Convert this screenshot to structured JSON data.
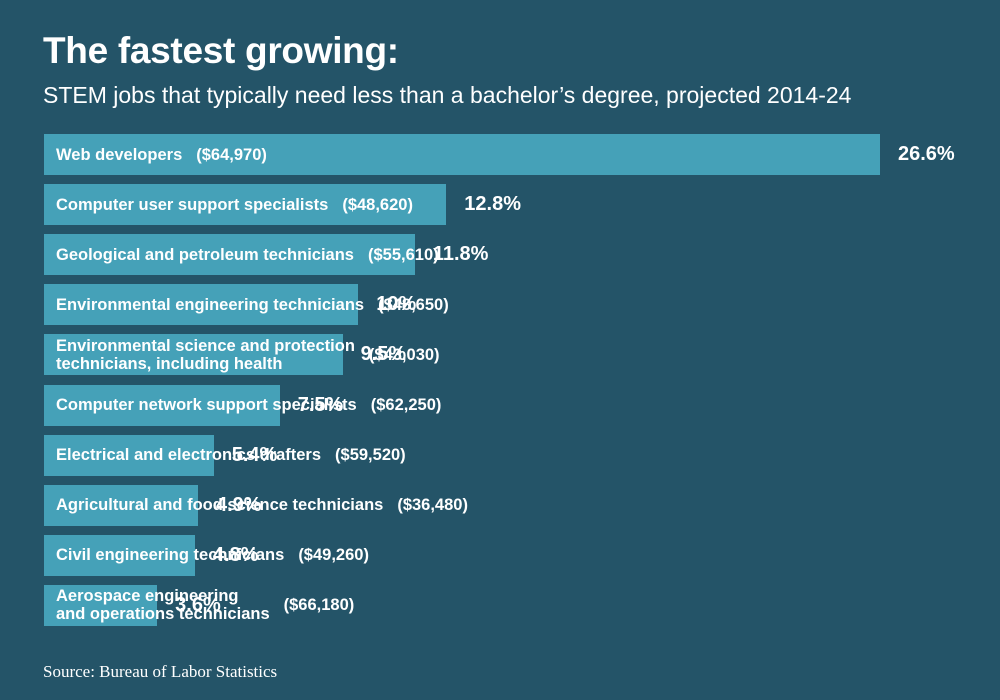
{
  "chart_data": {
    "type": "bar",
    "orientation": "horizontal",
    "title": "The fastest growing:",
    "subtitle": "STEM jobs that typically need less than a bachelor’s degree, projected 2014-24",
    "xlabel": "",
    "ylabel": "",
    "xlim": [
      0,
      26.6
    ],
    "grid": false,
    "categories": [
      "Web developers",
      "Computer user support specialists",
      "Geological and petroleum technicians",
      "Environmental engineering technicians",
      "Environmental science and protection\ntechnicians, including health",
      "Computer network support specialists",
      "Electrical and electronics drafters",
      "Agricultural and food science technicians",
      "Civil engineering technicians",
      "Aerospace engineering\nand operations technicians"
    ],
    "wages": [
      "($64,970)",
      "($48,620)",
      "($55,610)",
      "($48,650)",
      "($43,030)",
      "($62,250)",
      "($59,520)",
      "($36,480)",
      "($49,260)",
      "($66,180)"
    ],
    "values": [
      26.6,
      12.8,
      11.8,
      10,
      9.5,
      7.5,
      5.4,
      4.9,
      4.8,
      3.6
    ],
    "value_labels": [
      "26.6%",
      "12.8%",
      "11.8%",
      "10%",
      "9.5%",
      "7.5%",
      "5.4%",
      "4.9%",
      "4.8%",
      "3.6%"
    ],
    "source": "Source: Bureau of Labor Statistics"
  },
  "colors": {
    "background": "#245468",
    "bar": "#45a1b8",
    "text": "#ffffff"
  }
}
